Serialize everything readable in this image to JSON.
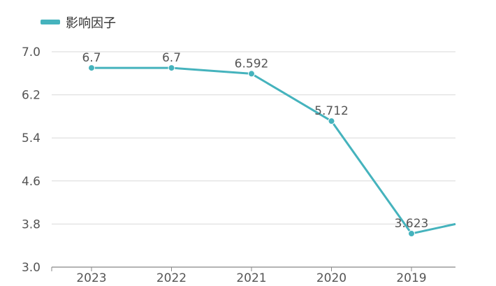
{
  "legend": {
    "label": "影响因子"
  },
  "chart_data": {
    "type": "line",
    "categories": [
      "2023",
      "2022",
      "2021",
      "2020",
      "2019"
    ],
    "series": [
      {
        "name": "影响因子",
        "values": [
          6.7,
          6.7,
          6.592,
          5.712,
          3.623
        ],
        "labels": [
          "6.7",
          "6.7",
          "6.592",
          "5.712",
          "3.623"
        ],
        "color": "#45b3bd"
      }
    ],
    "continuation_value": 3.8,
    "ylim": [
      3.0,
      7.0
    ],
    "yticks": [
      "3.0",
      "3.8",
      "4.6",
      "5.4",
      "6.2",
      "7.0"
    ],
    "grid": true,
    "legend_position": "top-left"
  }
}
